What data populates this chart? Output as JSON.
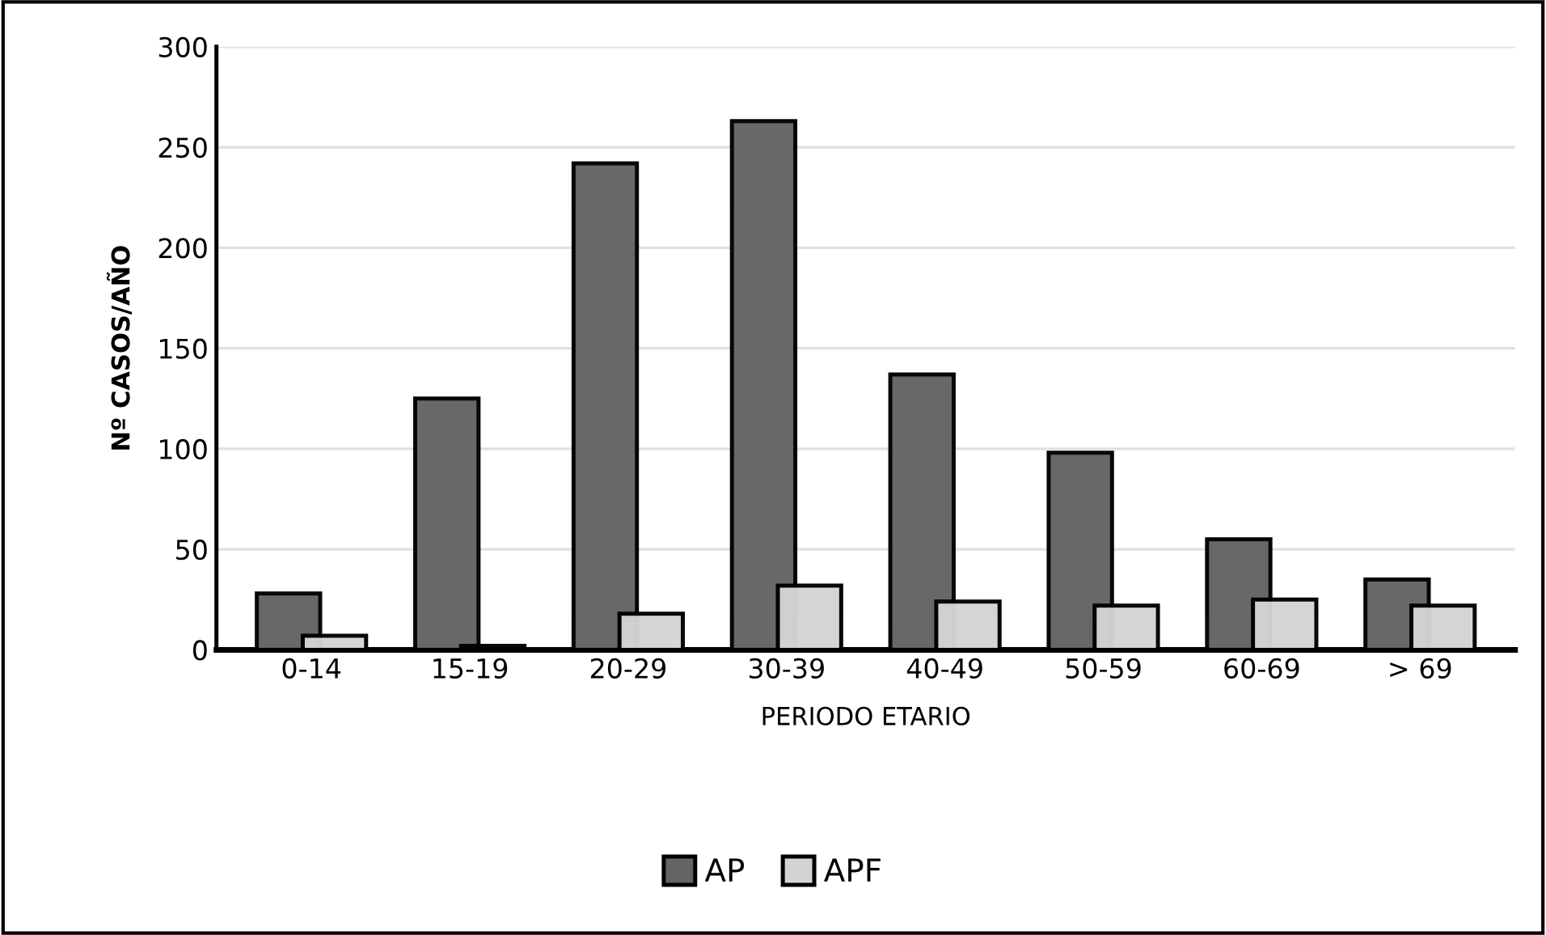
{
  "chart_data": {
    "type": "bar",
    "xlabel": "PERIODO ETARIO",
    "ylabel": "Nº CASOS/AÑO",
    "categories": [
      "0-14",
      "15-19",
      "20-29",
      "30-39",
      "40-49",
      "50-59",
      "60-69",
      "> 69"
    ],
    "series": [
      {
        "name": "AP",
        "color": "#646464",
        "values": [
          28,
          125,
          242,
          263,
          137,
          98,
          55,
          35
        ]
      },
      {
        "name": "APF",
        "color": "#d4d4d4",
        "values": [
          7,
          2,
          18,
          32,
          24,
          22,
          25,
          22
        ]
      }
    ],
    "ylim": [
      0,
      300
    ],
    "yticks": [
      0,
      50,
      100,
      150,
      200,
      250,
      300
    ],
    "grid": "y",
    "legend": "bottom"
  }
}
